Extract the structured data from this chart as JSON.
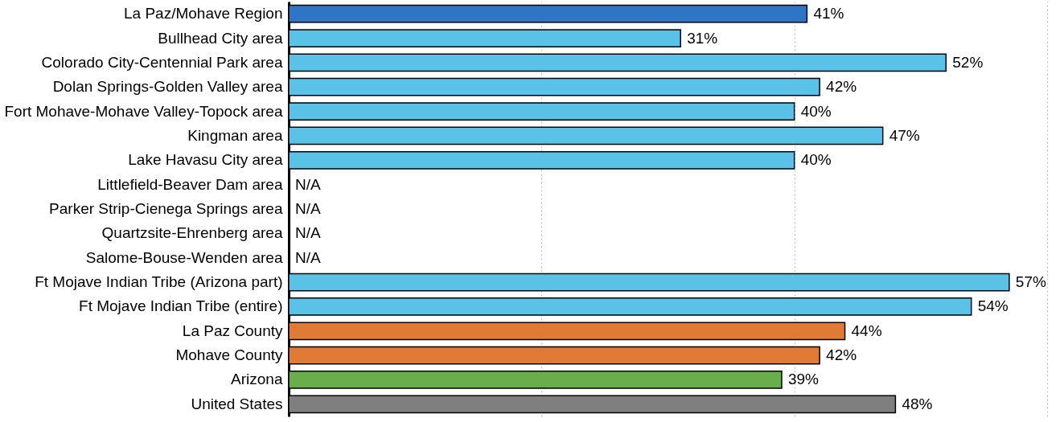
{
  "chart_data": {
    "type": "bar",
    "orientation": "horizontal",
    "categories": [
      "La Paz/Mohave Region",
      "Bullhead City area",
      "Colorado City-Centennial Park area",
      "Dolan Springs-Golden Valley area",
      "Fort Mohave-Mohave Valley-Topock area",
      "Kingman area",
      "Lake Havasu City area",
      "Littlefield-Beaver Dam area",
      "Parker Strip-Cienega Springs area",
      "Quartzsite-Ehrenberg area",
      "Salome-Bouse-Wenden area",
      "Ft Mojave Indian Tribe (Arizona part)",
      "Ft Mojave Indian Tribe (entire)",
      "La Paz County",
      "Mohave County",
      "Arizona",
      "United States"
    ],
    "values": [
      41,
      31,
      52,
      42,
      40,
      47,
      40,
      null,
      null,
      null,
      null,
      57,
      54,
      44,
      42,
      39,
      48
    ],
    "value_labels": [
      "41%",
      "31%",
      "52%",
      "42%",
      "40%",
      "47%",
      "40%",
      "N/A",
      "N/A",
      "N/A",
      "N/A",
      "57%",
      "54%",
      "44%",
      "42%",
      "39%",
      "48%"
    ],
    "colors": [
      "#2e75c6",
      "#5bc2e7",
      "#5bc2e7",
      "#5bc2e7",
      "#5bc2e7",
      "#5bc2e7",
      "#5bc2e7",
      "#5bc2e7",
      "#5bc2e7",
      "#5bc2e7",
      "#5bc2e7",
      "#5bc2e7",
      "#5bc2e7",
      "#e07a35",
      "#e07a35",
      "#6aad4b",
      "#7f7f7f"
    ],
    "xlim": [
      0,
      60
    ],
    "xticks": [
      {
        "value": 0,
        "label": null
      },
      {
        "value": 20,
        "label": null
      },
      {
        "value": 40,
        "label": null
      },
      {
        "value": 60,
        "label": null
      }
    ],
    "tick_labels": "y",
    "grid": "x",
    "legend": false
  }
}
